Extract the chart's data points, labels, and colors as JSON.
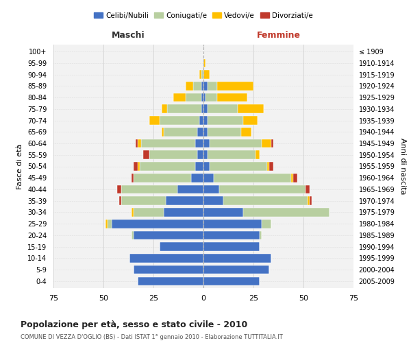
{
  "age_groups": [
    "0-4",
    "5-9",
    "10-14",
    "15-19",
    "20-24",
    "25-29",
    "30-34",
    "35-39",
    "40-44",
    "45-49",
    "50-54",
    "55-59",
    "60-64",
    "65-69",
    "70-74",
    "75-79",
    "80-84",
    "85-89",
    "90-94",
    "95-99",
    "100+"
  ],
  "birth_years": [
    "2005-2009",
    "2000-2004",
    "1995-1999",
    "1990-1994",
    "1985-1989",
    "1980-1984",
    "1975-1979",
    "1970-1974",
    "1965-1969",
    "1960-1964",
    "1955-1959",
    "1950-1954",
    "1945-1949",
    "1940-1944",
    "1935-1939",
    "1930-1934",
    "1925-1929",
    "1920-1924",
    "1915-1919",
    "1910-1914",
    "≤ 1909"
  ],
  "maschi": {
    "celibi": [
      33,
      35,
      37,
      22,
      35,
      46,
      20,
      19,
      13,
      6,
      4,
      3,
      4,
      3,
      2,
      1,
      1,
      1,
      0,
      0,
      0
    ],
    "coniugati": [
      0,
      0,
      0,
      0,
      1,
      2,
      15,
      22,
      28,
      29,
      28,
      24,
      27,
      17,
      20,
      17,
      8,
      4,
      1,
      0,
      0
    ],
    "vedovi": [
      0,
      0,
      0,
      0,
      0,
      1,
      1,
      0,
      0,
      0,
      1,
      0,
      2,
      1,
      5,
      3,
      6,
      4,
      1,
      0,
      0
    ],
    "divorziati": [
      0,
      0,
      0,
      0,
      0,
      0,
      0,
      1,
      2,
      1,
      2,
      3,
      1,
      0,
      0,
      0,
      0,
      0,
      0,
      0,
      0
    ]
  },
  "femmine": {
    "nubili": [
      28,
      33,
      34,
      28,
      28,
      29,
      20,
      10,
      8,
      5,
      3,
      2,
      3,
      2,
      2,
      2,
      1,
      2,
      0,
      0,
      0
    ],
    "coniugate": [
      0,
      0,
      0,
      0,
      1,
      5,
      43,
      42,
      43,
      39,
      29,
      24,
      26,
      17,
      18,
      15,
      6,
      5,
      0,
      0,
      0
    ],
    "vedove": [
      0,
      0,
      0,
      0,
      0,
      0,
      0,
      1,
      0,
      1,
      1,
      2,
      5,
      5,
      7,
      13,
      15,
      18,
      3,
      1,
      0
    ],
    "divorziate": [
      0,
      0,
      0,
      0,
      0,
      0,
      0,
      1,
      2,
      2,
      2,
      0,
      1,
      0,
      0,
      0,
      0,
      0,
      0,
      0,
      0
    ]
  },
  "colors": {
    "celibi_nubili": "#4472c4",
    "coniugati": "#b8cfa0",
    "vedovi": "#ffc000",
    "divorziati": "#c0392b"
  },
  "xlim": 75,
  "title": "Popolazione per età, sesso e stato civile - 2010",
  "subtitle": "COMUNE DI VEZZA D'OGLIO (BS) - Dati ISTAT 1° gennaio 2010 - Elaborazione TUTTITALIA.IT",
  "ylabel_left": "Fasce di età",
  "ylabel_right": "Anni di nascita",
  "header_left": "Maschi",
  "header_right": "Femmine",
  "legend_labels": [
    "Celibi/Nubili",
    "Coniugati/e",
    "Vedovi/e",
    "Divorziati/e"
  ],
  "bg_color": "#f5f5f5",
  "bar_height": 0.75
}
